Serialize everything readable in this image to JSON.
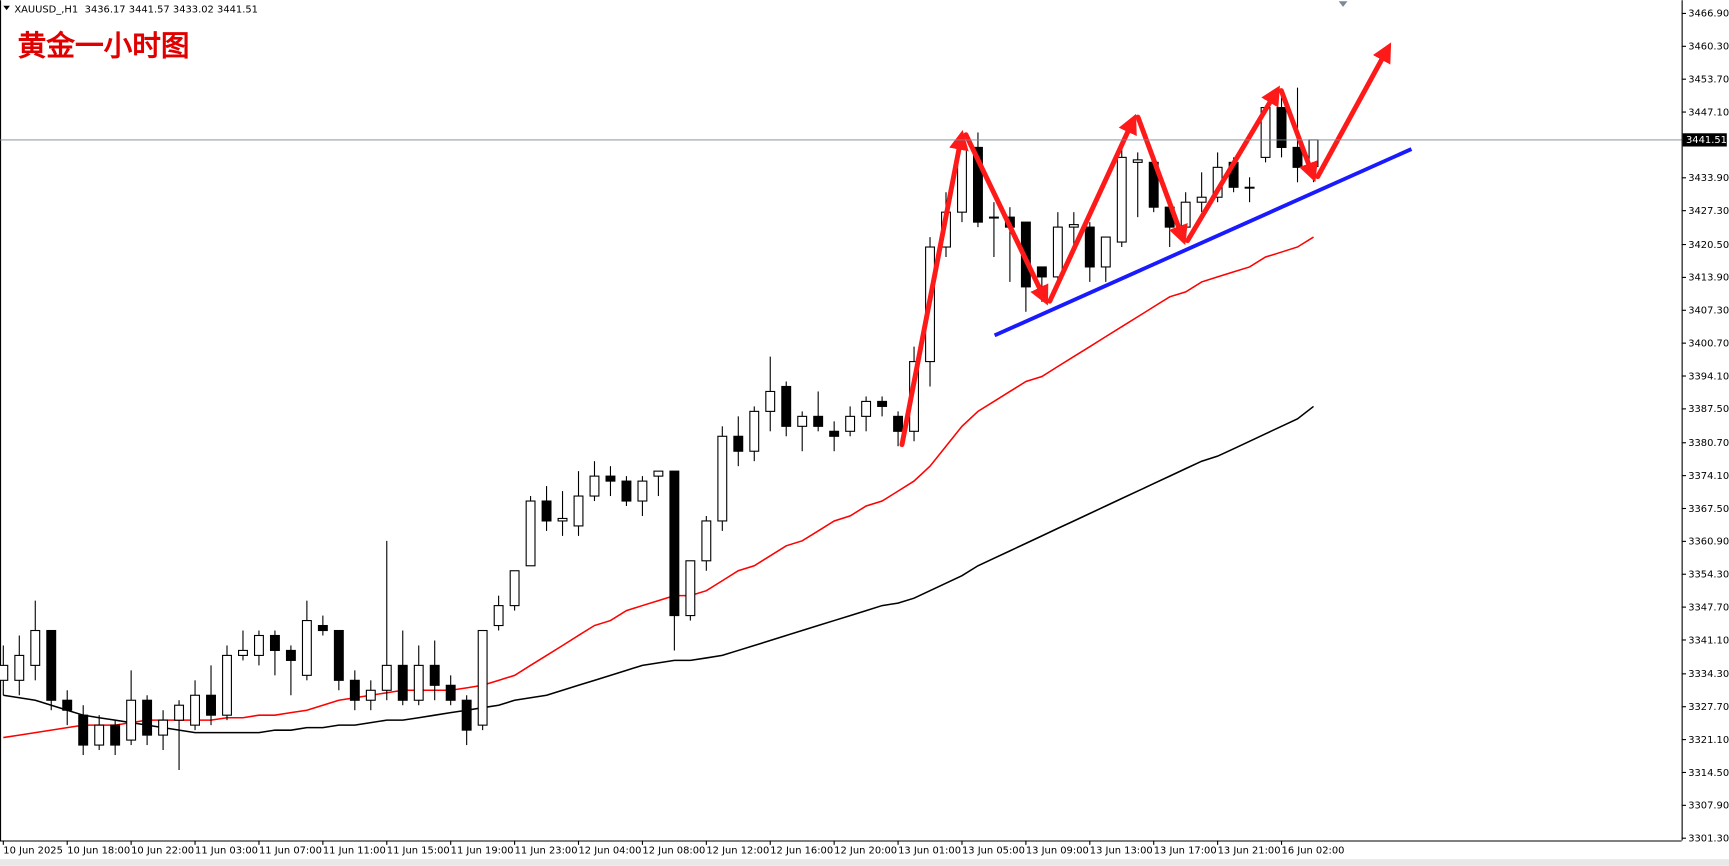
{
  "chart_data": {
    "type": "candlestick",
    "symbol": "XAUUSD_,H1",
    "header_ohlc": [
      3436.17,
      3441.57,
      3433.02,
      3441.51
    ],
    "title": "黄金一小时图",
    "current_price": 3441.51,
    "up_color": "#ffffff",
    "down_color": "#000000",
    "categories": [
      "10 Jun 2025",
      null,
      null,
      null,
      "10 Jun 18:00",
      null,
      null,
      null,
      "10 Jun 22:00",
      null,
      null,
      null,
      "11 Jun 03:00",
      null,
      null,
      null,
      "11 Jun 07:00",
      null,
      null,
      null,
      "11 Jun 11:00",
      null,
      null,
      null,
      "11 Jun 15:00",
      null,
      null,
      null,
      "11 Jun 19:00",
      null,
      null,
      null,
      "11 Jun 23:00",
      null,
      null,
      null,
      "12 Jun 04:00",
      null,
      null,
      null,
      "12 Jun 08:00",
      null,
      null,
      null,
      "12 Jun 12:00",
      null,
      null,
      null,
      "12 Jun 16:00",
      null,
      null,
      null,
      "12 Jun 20:00",
      null,
      null,
      null,
      "13 Jun 01:00",
      null,
      null,
      null,
      "13 Jun 05:00",
      null,
      null,
      null,
      "13 Jun 09:00",
      null,
      null,
      null,
      "13 Jun 13:00",
      null,
      null,
      null,
      "13 Jun 17:00",
      null,
      null,
      null,
      "13 Jun 21:00",
      null,
      null,
      null,
      "16 Jun 02:00",
      null,
      null
    ],
    "open": [
      3333,
      3333,
      3336,
      3343,
      3329,
      3326,
      3320,
      3324,
      3321,
      3329,
      3322,
      3325,
      3324,
      3330,
      3326,
      3338,
      3338,
      3342,
      3339,
      3334,
      3344,
      3343,
      3333,
      3329,
      3331,
      3336,
      3329,
      3336,
      3332,
      3329,
      3324,
      3344,
      3348,
      3356,
      3369,
      3365,
      3364,
      3370,
      3374,
      3373,
      3369,
      3374,
      3375,
      3346,
      3357,
      3365,
      3382,
      3379,
      3387,
      3392,
      3384,
      3386,
      3383,
      3383,
      3386,
      3389,
      3386,
      3383,
      3397,
      3420,
      3427,
      3440,
      3426,
      3426,
      3425,
      3416,
      3414,
      3424,
      3424,
      3416,
      3421,
      3437,
      3437,
      3428,
      3424,
      3429,
      3430,
      3437,
      3432,
      3438,
      3448,
      3440,
      3436.17
    ],
    "high": [
      3340,
      3342,
      3349,
      3343,
      3331,
      3328,
      3326,
      3325,
      3335,
      3330,
      3327,
      3329,
      3333,
      3336,
      3340,
      3343,
      3343,
      3343,
      3340,
      3349,
      3346,
      3343,
      3335,
      3333,
      3361,
      3343,
      3340,
      3341,
      3334,
      3330,
      3343,
      3350,
      3355,
      3370,
      3372,
      3371,
      3375,
      3377,
      3376,
      3374,
      3374,
      3375,
      3375,
      3357,
      3366,
      3384,
      3386,
      3388,
      3398,
      3393,
      3387,
      3391,
      3385,
      3388,
      3390,
      3390,
      3387,
      3400,
      3422,
      3431,
      3443,
      3443,
      3429,
      3428,
      3425,
      3416,
      3427,
      3427,
      3425,
      3422,
      3441,
      3439,
      3438,
      3430,
      3431,
      3435,
      3439,
      3438,
      3434,
      3448,
      3450,
      3452,
      3441.57
    ],
    "low": [
      3330,
      3330,
      3333,
      3327,
      3324,
      3318,
      3319,
      3318,
      3320,
      3320,
      3319,
      3315,
      3323,
      3324,
      3325,
      3337,
      3336,
      3334,
      3330,
      3333,
      3342,
      3331,
      3327,
      3327,
      3329,
      3328,
      3328,
      3329,
      3328,
      3320,
      3323,
      3343,
      3347,
      3356,
      3363,
      3362,
      3362,
      3369,
      3370,
      3368,
      3366,
      3370,
      3339,
      3345,
      3355,
      3363,
      3376,
      3377,
      3383,
      3382,
      3379,
      3383,
      3379,
      3382,
      3383,
      3386,
      3380,
      3381,
      3392,
      3418,
      3425,
      3424,
      3418,
      3413,
      3407,
      3409,
      3413,
      3420,
      3413,
      3413,
      3420,
      3426,
      3427,
      3420,
      3422,
      3427,
      3429,
      3431,
      3429,
      3437,
      3438,
      3433,
      3433.02
    ],
    "close": [
      3336,
      3338,
      3343,
      3329,
      3327,
      3320,
      3324,
      3320,
      3329,
      3322,
      3325,
      3328,
      3330,
      3326,
      3338,
      3339,
      3342,
      3339,
      3337,
      3345,
      3343,
      3333,
      3329,
      3331,
      3336,
      3329,
      3336,
      3332,
      3329,
      3323,
      3343,
      3348,
      3355,
      3369,
      3365,
      3365.5,
      3370,
      3374,
      3373,
      3369,
      3373,
      3375,
      3346,
      3357,
      3365,
      3382,
      3379,
      3387,
      3391,
      3384,
      3386,
      3384,
      3382,
      3386,
      3389,
      3388,
      3383,
      3397,
      3420,
      3427,
      3440,
      3425,
      3426,
      3424,
      3412,
      3414,
      3424,
      3424.5,
      3416,
      3422,
      3438,
      3437.5,
      3428,
      3424,
      3429,
      3430,
      3436,
      3432,
      3432,
      3448,
      3440,
      3436,
      3441.51
    ],
    "lines": [
      {
        "color": "#ff0000",
        "values": [
          3321.5,
          3322,
          3322.5,
          3323,
          3323.5,
          3324,
          3324,
          3324,
          3324.5,
          3325,
          3325,
          3325,
          3325,
          3325,
          3325.5,
          3325.5,
          3326,
          3326,
          3326.5,
          3327,
          3328,
          3329,
          3329.5,
          3330,
          3330.5,
          3331,
          3331,
          3331,
          3331,
          3331.5,
          3332,
          3333,
          3334,
          3336,
          3338,
          3340,
          3342,
          3344,
          3345,
          3347,
          3348,
          3349,
          3350,
          3350,
          3351,
          3353,
          3355,
          3356,
          3358,
          3360,
          3361,
          3363,
          3365,
          3366,
          3368,
          3369,
          3371,
          3373,
          3376,
          3380,
          3384,
          3387,
          3389,
          3391,
          3393,
          3394,
          3396,
          3398,
          3400,
          3402,
          3404,
          3406,
          3408,
          3410,
          3411,
          3413,
          3414,
          3415,
          3416,
          3418,
          3419,
          3420,
          3422
        ]
      },
      {
        "color": "#000000",
        "values": [
          3330,
          3329.5,
          3329,
          3328,
          3327,
          3326,
          3325.5,
          3325,
          3324.5,
          3324,
          3323.5,
          3323,
          3322.5,
          3322.5,
          3322.5,
          3322.5,
          3322.5,
          3323,
          3323,
          3323.5,
          3323.5,
          3324,
          3324,
          3324.5,
          3325,
          3325,
          3325.5,
          3326,
          3326.5,
          3327,
          3327.5,
          3328,
          3329,
          3329.5,
          3330,
          3331,
          3332,
          3333,
          3334,
          3335,
          3336,
          3336.5,
          3337,
          3337,
          3337.5,
          3338,
          3339,
          3340,
          3341,
          3342,
          3343,
          3344,
          3345,
          3346,
          3347,
          3348,
          3348.5,
          3349.5,
          3351,
          3352.5,
          3354,
          3356,
          3357.5,
          3359,
          3360.5,
          3362,
          3363.5,
          3365,
          3366.5,
          3368,
          3369.5,
          3371,
          3372.5,
          3374,
          3375.5,
          3377,
          3378,
          3379.5,
          3381,
          3382.5,
          3384,
          3385.5,
          3388
        ]
      }
    ],
    "ylim": [
      3300.85,
      3469.56
    ],
    "yticks": [
      {
        "value": 3466.9,
        "label": "3466.90"
      },
      {
        "value": 3460.3,
        "label": "3460.30"
      },
      {
        "value": 3453.7,
        "label": "3453.70"
      },
      {
        "value": 3447.1,
        "label": "3447.10"
      },
      {
        "value": 3433.9,
        "label": "3433.90"
      },
      {
        "value": 3427.3,
        "label": "3427.30"
      },
      {
        "value": 3420.5,
        "label": "3420.50"
      },
      {
        "value": 3413.9,
        "label": "3413.90"
      },
      {
        "value": 3407.3,
        "label": "3407.30"
      },
      {
        "value": 3400.7,
        "label": "3400.70"
      },
      {
        "value": 3394.1,
        "label": "3394.10"
      },
      {
        "value": 3387.5,
        "label": "3387.50"
      },
      {
        "value": 3380.7,
        "label": "3380.70"
      },
      {
        "value": 3374.1,
        "label": "3374.10"
      },
      {
        "value": 3367.5,
        "label": "3367.50"
      },
      {
        "value": 3360.9,
        "label": "3360.90"
      },
      {
        "value": 3354.3,
        "label": "3354.30"
      },
      {
        "value": 3347.7,
        "label": "3347.70"
      },
      {
        "value": 3341.1,
        "label": "3341.10"
      },
      {
        "value": 3334.3,
        "label": "3334.30"
      },
      {
        "value": 3327.7,
        "label": "3327.70"
      },
      {
        "value": 3321.1,
        "label": "3321.10"
      },
      {
        "value": 3314.5,
        "label": "3314.50"
      },
      {
        "value": 3307.9,
        "label": "3307.90"
      },
      {
        "value": 3301.3,
        "label": "3301.30"
      }
    ]
  }
}
